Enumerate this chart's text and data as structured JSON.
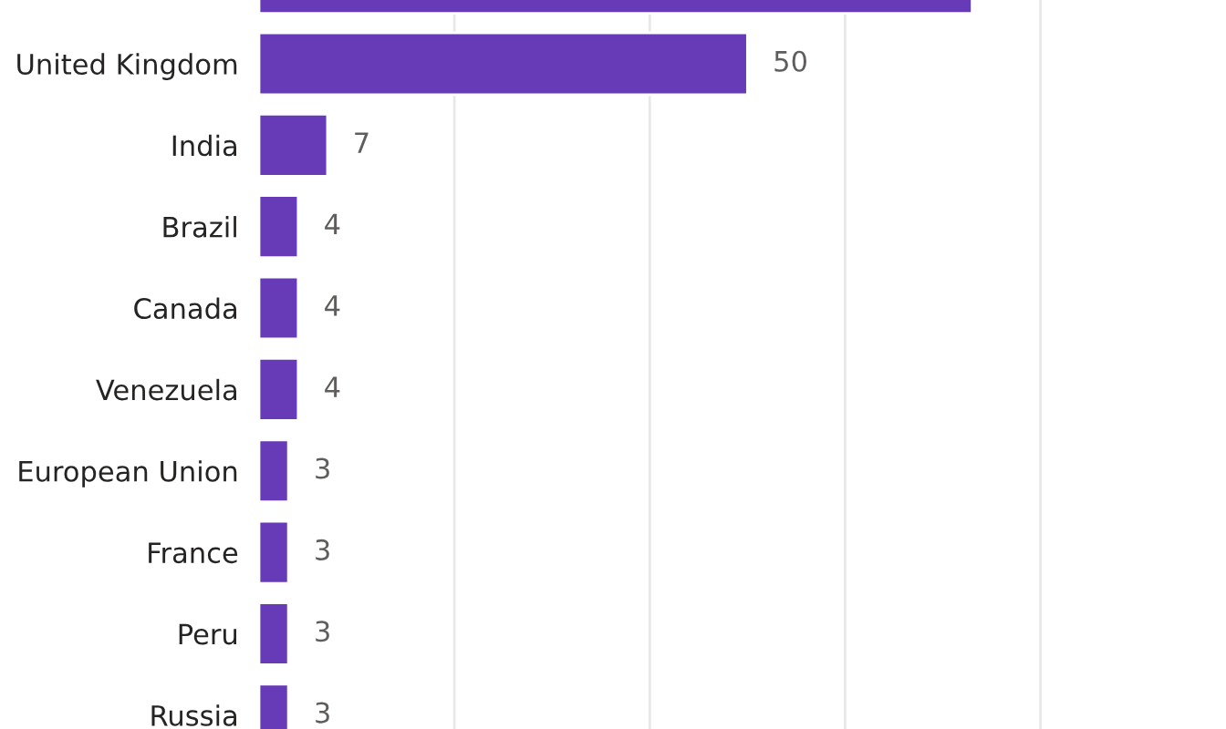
{
  "chart_data": {
    "type": "bar",
    "orientation": "horizontal",
    "categories": [
      null,
      "United Kingdom",
      "India",
      "Brazil",
      "Canada",
      "Venezuela",
      "European Union",
      "France",
      "Peru",
      "Russia"
    ],
    "values": [
      73,
      50,
      7,
      4,
      4,
      4,
      3,
      3,
      3,
      3
    ],
    "value_labels": [
      null,
      "50",
      "7",
      "4",
      "4",
      "4",
      "3",
      "3",
      "3",
      "3"
    ],
    "color": "#673ab7",
    "xticks": [
      {
        "value": 20,
        "label": null
      },
      {
        "value": 40,
        "label": null
      },
      {
        "value": 60,
        "label": null
      },
      {
        "value": 80,
        "label": null
      }
    ],
    "grid": "x"
  }
}
